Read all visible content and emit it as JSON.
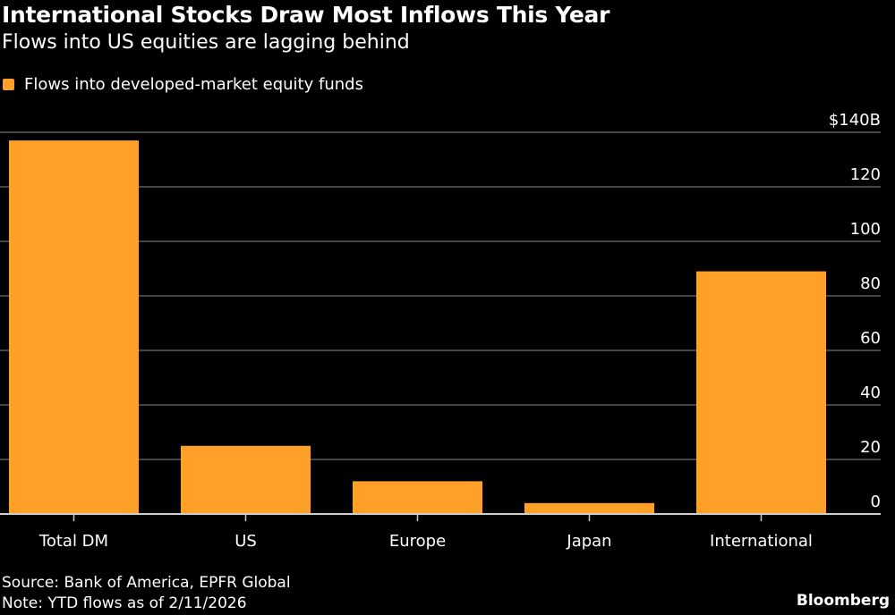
{
  "chart_data": {
    "type": "bar",
    "title": "International Stocks Draw Most Inflows This Year",
    "subtitle": "Flows into US equities are lagging behind",
    "categories": [
      "Total DM",
      "US",
      "Europe",
      "Japan",
      "International"
    ],
    "series": [
      {
        "name": "Flows into developed-market equity funds",
        "values": [
          137,
          25,
          12,
          4,
          89
        ],
        "color": "#ffa028"
      }
    ],
    "ylim": [
      0,
      140
    ],
    "yticks": [
      0,
      20,
      40,
      60,
      80,
      100,
      120,
      140
    ],
    "ytick_labels": [
      "0",
      "20",
      "40",
      "60",
      "80",
      "100",
      "120",
      "$140B"
    ],
    "y_axis_side": "right",
    "grid": true,
    "legend_placement": "top-left"
  },
  "footer": {
    "source": "Source: Bank of America, EPFR Global",
    "note": "Note: YTD flows as of 2/11/2026",
    "brand": "Bloomberg"
  }
}
